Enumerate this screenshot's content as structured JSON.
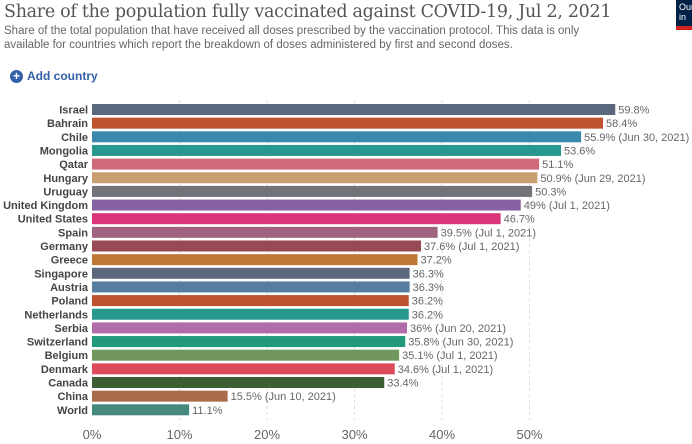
{
  "title": "Share of the population fully vaccinated against COVID-19, Jul 2, 2021",
  "subtitle": "Share of the total population that have received all doses prescribed by the vaccination protocol. This data is only available for countries which report the breakdown of doses administered by first and second doses.",
  "logo_text": "Our World in Data",
  "add_country_label": "Add country",
  "chart_data": {
    "type": "bar",
    "orientation": "horizontal",
    "xlim": [
      0,
      60
    ],
    "grid": true,
    "ticks": [
      "0%",
      "10%",
      "20%",
      "30%",
      "40%",
      "50%"
    ],
    "tick_values": [
      0,
      10,
      20,
      30,
      40,
      50
    ],
    "categories": [
      "Israel",
      "Bahrain",
      "Chile",
      "Mongolia",
      "Qatar",
      "Hungary",
      "Uruguay",
      "United Kingdom",
      "United States",
      "Spain",
      "Germany",
      "Greece",
      "Singapore",
      "Austria",
      "Poland",
      "Netherlands",
      "Serbia",
      "Switzerland",
      "Belgium",
      "Denmark",
      "Canada",
      "China",
      "World"
    ],
    "values": [
      59.8,
      58.4,
      55.9,
      53.6,
      51.1,
      50.9,
      50.3,
      49,
      46.7,
      39.5,
      37.6,
      37.2,
      36.3,
      36.3,
      36.2,
      36.2,
      36,
      35.8,
      35.1,
      34.6,
      33.4,
      15.5,
      11.1
    ],
    "labels": [
      "59.8%",
      "58.4%",
      "55.9% (Jun 30, 2021)",
      "53.6%",
      "51.1%",
      "50.9% (Jun 29, 2021)",
      "50.3%",
      "49% (Jul 1, 2021)",
      "46.7%",
      "39.5% (Jul 1, 2021)",
      "37.6% (Jul 1, 2021)",
      "37.2%",
      "36.3%",
      "36.3%",
      "36.2%",
      "36.2%",
      "36% (Jun 20, 2021)",
      "35.8% (Jun 30, 2021)",
      "35.1% (Jul 1, 2021)",
      "34.6% (Jul 1, 2021)",
      "33.4%",
      "15.5% (Jun 10, 2021)",
      "11.1%"
    ],
    "colors": [
      "#5b677c",
      "#be5230",
      "#3a88ac",
      "#27988d",
      "#cf6a7b",
      "#c99f72",
      "#717378",
      "#8661a3",
      "#d8357a",
      "#a06380",
      "#984a54",
      "#bf7935",
      "#5b677c",
      "#557d9f",
      "#be5230",
      "#27988d",
      "#b06da9",
      "#22997a",
      "#72975d",
      "#dc4a5c",
      "#3b5e33",
      "#a86c4a",
      "#45897e"
    ]
  }
}
